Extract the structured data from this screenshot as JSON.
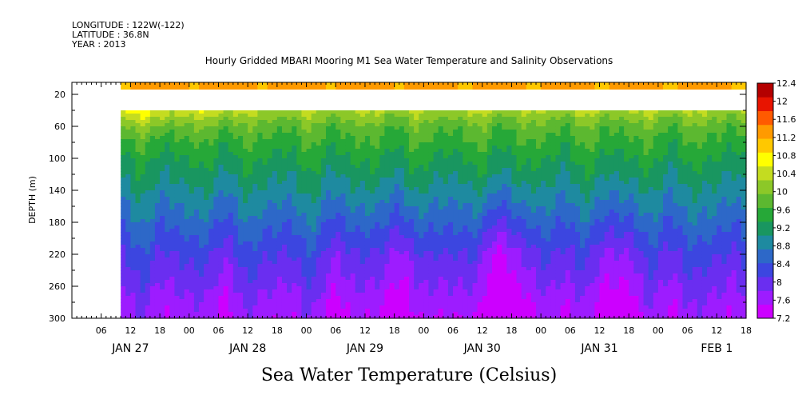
{
  "header": {
    "longitude": "LONGITUDE : 122W(-122)",
    "latitude": "LATITUDE : 36.8N",
    "year": "YEAR : 2013"
  },
  "chart_data": {
    "type": "heatmap",
    "title": "Hourly Gridded MBARI Mooring M1 Sea Water Temperature and Salinity Observations",
    "xlabel": "Sea Water Temperature (Celsius)",
    "ylabel": "DEPTH (m)",
    "x_range_hours": [
      0,
      138
    ],
    "x_start_label": "JAN 27 00",
    "data_start_hour": 10,
    "ylim": [
      300,
      5
    ],
    "y_ticks": [
      20,
      60,
      100,
      140,
      180,
      220,
      260,
      300
    ],
    "x_hour_ticks": [
      {
        "hour": 6,
        "label": "06"
      },
      {
        "hour": 12,
        "label": "12"
      },
      {
        "hour": 18,
        "label": "18"
      },
      {
        "hour": 24,
        "label": "00"
      },
      {
        "hour": 30,
        "label": "06"
      },
      {
        "hour": 36,
        "label": "12"
      },
      {
        "hour": 42,
        "label": "18"
      },
      {
        "hour": 48,
        "label": "00"
      },
      {
        "hour": 54,
        "label": "06"
      },
      {
        "hour": 60,
        "label": "12"
      },
      {
        "hour": 66,
        "label": "18"
      },
      {
        "hour": 72,
        "label": "00"
      },
      {
        "hour": 78,
        "label": "06"
      },
      {
        "hour": 84,
        "label": "12"
      },
      {
        "hour": 90,
        "label": "18"
      },
      {
        "hour": 96,
        "label": "00"
      },
      {
        "hour": 102,
        "label": "06"
      },
      {
        "hour": 108,
        "label": "12"
      },
      {
        "hour": 114,
        "label": "18"
      },
      {
        "hour": 120,
        "label": "00"
      },
      {
        "hour": 126,
        "label": "06"
      },
      {
        "hour": 132,
        "label": "12"
      },
      {
        "hour": 138,
        "label": "18"
      }
    ],
    "date_labels": [
      {
        "hour": 12,
        "label": "JAN 27"
      },
      {
        "hour": 36,
        "label": "JAN 28"
      },
      {
        "hour": 60,
        "label": "JAN 29"
      },
      {
        "hour": 84,
        "label": "JAN 30"
      },
      {
        "hour": 108,
        "label": "JAN 31"
      },
      {
        "hour": 132,
        "label": "FEB  1"
      }
    ],
    "colorbar_levels": [
      7.2,
      7.6,
      8,
      8.4,
      8.8,
      9.2,
      9.6,
      10,
      10.4,
      10.8,
      11.2,
      11.6,
      12,
      12.4
    ],
    "colorbar_labels": [
      "12.4",
      "12",
      "11.6",
      "11.2",
      "10.8",
      "10.4",
      "10",
      "9.6",
      "9.2",
      "8.8",
      "8.4",
      "8",
      "7.6",
      "7.2"
    ],
    "colors": [
      "#cc00ff",
      "#9d1cff",
      "#6a2ef0",
      "#3c46e0",
      "#2d68c8",
      "#1e8aa0",
      "#199660",
      "#26a838",
      "#5cb830",
      "#8cc828",
      "#c4dc20",
      "#ffff00",
      "#ffc800",
      "#ff9a00",
      "#ff5a00",
      "#e81400",
      "#b40000"
    ],
    "depths": [
      10,
      40,
      60,
      80,
      100,
      120,
      140,
      160,
      180,
      200,
      220,
      240,
      260,
      280,
      300
    ],
    "profile_mean": [
      12.1,
      10.8,
      10.2,
      9.9,
      9.6,
      9.35,
      9.1,
      8.85,
      8.6,
      8.35,
      8.1,
      7.9,
      7.7,
      7.5,
      7.35
    ],
    "missing_band_m": [
      14,
      40
    ]
  }
}
